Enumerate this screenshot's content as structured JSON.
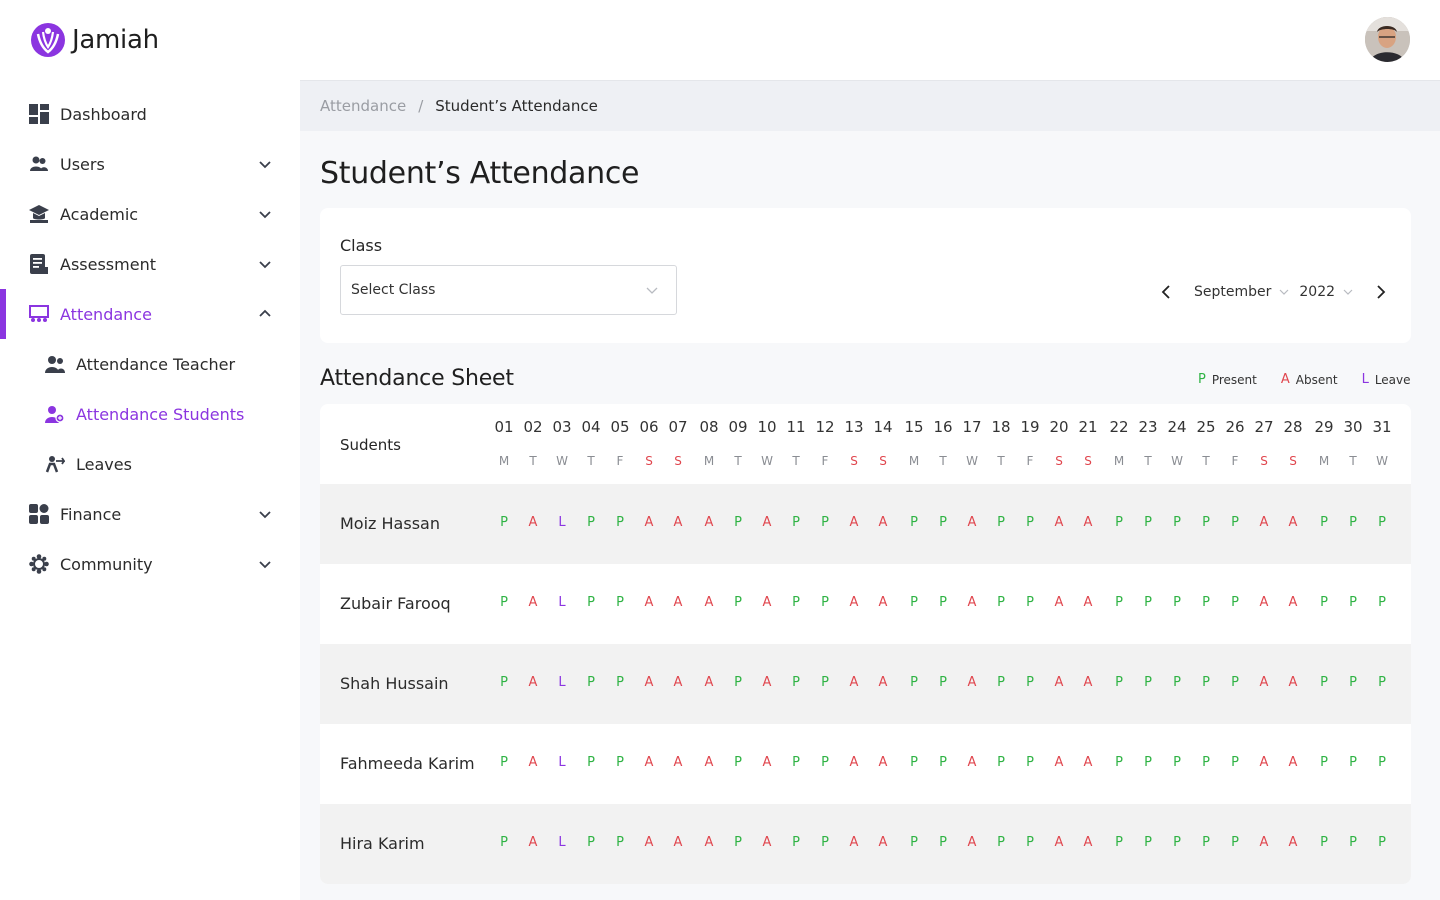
{
  "app": {
    "name": "Jamiah"
  },
  "colors": {
    "accent": "#8b35e0",
    "present": "#2fb344",
    "absent": "#e0464e",
    "leave": "#8b35e0"
  },
  "sidebar": {
    "items": [
      {
        "key": "dashboard",
        "label": "Dashboard",
        "icon": "dashboard-icon",
        "chevron": false
      },
      {
        "key": "users",
        "label": "Users",
        "icon": "users-icon",
        "chevron": "down"
      },
      {
        "key": "academic",
        "label": "Academic",
        "icon": "academic-icon",
        "chevron": "down"
      },
      {
        "key": "assessment",
        "label": "Assessment",
        "icon": "assessment-icon",
        "chevron": "down"
      },
      {
        "key": "attendance",
        "label": "Attendance",
        "icon": "attendance-icon",
        "chevron": "up",
        "active": true
      },
      {
        "key": "attendance-teacher",
        "label": "Attendance Teacher",
        "icon": "teacher-icon",
        "sub": true
      },
      {
        "key": "attendance-students",
        "label": "Attendance Students",
        "icon": "students-icon",
        "sub": true,
        "active": true
      },
      {
        "key": "leaves",
        "label": "Leaves",
        "icon": "leaves-icon",
        "sub": true
      },
      {
        "key": "finance",
        "label": "Finance",
        "icon": "finance-icon",
        "chevron": "down"
      },
      {
        "key": "community",
        "label": "Community",
        "icon": "community-icon",
        "chevron": "down"
      }
    ]
  },
  "breadcrumb": {
    "parent": "Attendance",
    "separator": "/",
    "current": "Student’s Attendance"
  },
  "page": {
    "title": "Student’s Attendance"
  },
  "filters": {
    "class_label": "Class",
    "class_placeholder": "Select Class",
    "month": "September",
    "year": "2022"
  },
  "sheet": {
    "title": "Attendance Sheet",
    "legend": [
      {
        "code": "P",
        "label": "Present"
      },
      {
        "code": "A",
        "label": "Absent"
      },
      {
        "code": "L",
        "label": "Leave"
      }
    ],
    "students_header": "Sudents",
    "days": [
      "01",
      "02",
      "03",
      "04",
      "05",
      "06",
      "07",
      "08",
      "09",
      "10",
      "11",
      "12",
      "13",
      "14",
      "15",
      "16",
      "17",
      "18",
      "19",
      "20",
      "21",
      "22",
      "23",
      "24",
      "25",
      "26",
      "27",
      "28",
      "29",
      "30",
      "31"
    ],
    "weekdays": [
      "M",
      "T",
      "W",
      "T",
      "F",
      "S",
      "S",
      "M",
      "T",
      "W",
      "T",
      "F",
      "S",
      "S",
      "M",
      "T",
      "W",
      "T",
      "F",
      "S",
      "S",
      "M",
      "T",
      "W",
      "T",
      "F",
      "S",
      "S",
      "M",
      "T",
      "W"
    ],
    "rows": [
      {
        "name": "Moiz Hassan",
        "marks": [
          "P",
          "A",
          "L",
          "P",
          "P",
          "A",
          "A",
          "A",
          "P",
          "A",
          "P",
          "P",
          "A",
          "A",
          "P",
          "P",
          "A",
          "P",
          "P",
          "A",
          "A",
          "P",
          "P",
          "P",
          "P",
          "P",
          "A",
          "A",
          "P",
          "P",
          "P"
        ]
      },
      {
        "name": "Zubair Farooq",
        "marks": [
          "P",
          "A",
          "L",
          "P",
          "P",
          "A",
          "A",
          "A",
          "P",
          "A",
          "P",
          "P",
          "A",
          "A",
          "P",
          "P",
          "A",
          "P",
          "P",
          "A",
          "A",
          "P",
          "P",
          "P",
          "P",
          "P",
          "A",
          "A",
          "P",
          "P",
          "P"
        ]
      },
      {
        "name": "Shah Hussain",
        "marks": [
          "P",
          "A",
          "L",
          "P",
          "P",
          "A",
          "A",
          "A",
          "P",
          "A",
          "P",
          "P",
          "A",
          "A",
          "P",
          "P",
          "A",
          "P",
          "P",
          "A",
          "A",
          "P",
          "P",
          "P",
          "P",
          "P",
          "A",
          "A",
          "P",
          "P",
          "P"
        ]
      },
      {
        "name": "Fahmeeda Karim",
        "marks": [
          "P",
          "A",
          "L",
          "P",
          "P",
          "A",
          "A",
          "A",
          "P",
          "A",
          "P",
          "P",
          "A",
          "A",
          "P",
          "P",
          "A",
          "P",
          "P",
          "A",
          "A",
          "P",
          "P",
          "P",
          "P",
          "P",
          "A",
          "A",
          "P",
          "P",
          "P"
        ]
      },
      {
        "name": "Hira Karim",
        "marks": [
          "P",
          "A",
          "L",
          "P",
          "P",
          "A",
          "A",
          "A",
          "P",
          "A",
          "P",
          "P",
          "A",
          "A",
          "P",
          "P",
          "A",
          "P",
          "P",
          "A",
          "A",
          "P",
          "P",
          "P",
          "P",
          "P",
          "A",
          "A",
          "P",
          "P",
          "P"
        ]
      }
    ]
  }
}
